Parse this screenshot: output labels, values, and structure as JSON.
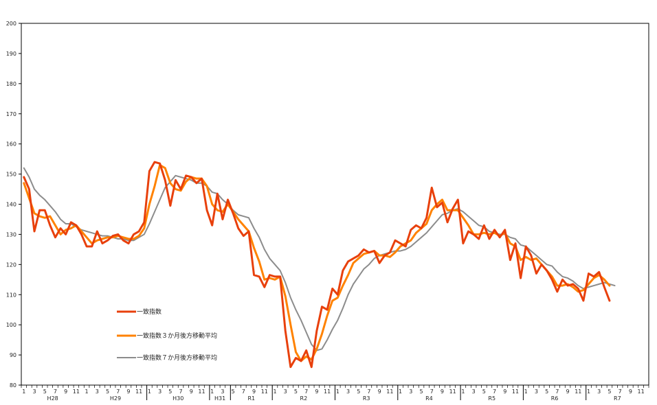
{
  "chart_data": {
    "type": "line",
    "ylim": [
      80,
      200
    ],
    "yticks": [
      80,
      90,
      100,
      110,
      120,
      130,
      140,
      150,
      160,
      170,
      180,
      190,
      200
    ],
    "x_months_total": 120,
    "era_labels": [
      {
        "label": "H28",
        "start": 0,
        "span": 12
      },
      {
        "label": "H29",
        "start": 12,
        "span": 12
      },
      {
        "label": "H30",
        "start": 24,
        "span": 12
      },
      {
        "label": "H31",
        "start": 36,
        "span": 4
      },
      {
        "label": "R1",
        "start": 40,
        "span": 8
      },
      {
        "label": "R2",
        "start": 48,
        "span": 12
      },
      {
        "label": "R3",
        "start": 60,
        "span": 12
      },
      {
        "label": "R4",
        "start": 72,
        "span": 12
      },
      {
        "label": "R5",
        "start": 84,
        "span": 12
      },
      {
        "label": "R6",
        "start": 96,
        "span": 12
      },
      {
        "label": "R7",
        "start": 108,
        "span": 12
      }
    ],
    "era_dividers": [
      24,
      36,
      40,
      48,
      60,
      72,
      84,
      96,
      108
    ],
    "month_labels": [
      "1",
      "3",
      "5",
      "7",
      "9",
      "11"
    ],
    "series": [
      {
        "name": "一致指数",
        "color": "#e8400c",
        "width": 3,
        "values": [
          149,
          145,
          131,
          138,
          138,
          133,
          129,
          132,
          130,
          134,
          133,
          130,
          126,
          126,
          131,
          127,
          128,
          129.5,
          130,
          128,
          127,
          130,
          131,
          134,
          151,
          154,
          153.5,
          148,
          139.5,
          148,
          145,
          149.5,
          149,
          147,
          148.5,
          138,
          133,
          143.5,
          135,
          141.5,
          137,
          132,
          129.5,
          131,
          116.5,
          116,
          112.5,
          116.5,
          116,
          116,
          98,
          86,
          89,
          88,
          91.5,
          86,
          98,
          106,
          105,
          112,
          110,
          118,
          121,
          122,
          123,
          125,
          124,
          124.5,
          120.5,
          123,
          124,
          128,
          127,
          126,
          131.5,
          133,
          132,
          135.5,
          145.5,
          139,
          140.5,
          134,
          138.5,
          141.5,
          127,
          131,
          130,
          128.5,
          133,
          128.5,
          131.5,
          129,
          131.5,
          121.5,
          127,
          115.5,
          126,
          123,
          117,
          120,
          118,
          115,
          111,
          115,
          113,
          113.5,
          112,
          108,
          117,
          116,
          117.5,
          112.5,
          108
        ]
      },
      {
        "name": "一致指数３か月後方移動平均",
        "color": "#ff8200",
        "width": 3,
        "values": [
          147,
          142,
          137,
          136,
          135.5,
          136,
          133,
          130,
          131.5,
          132,
          133,
          131,
          129,
          127,
          128,
          128.5,
          129,
          129,
          129.5,
          129,
          128.5,
          128.5,
          129.5,
          132,
          140,
          146,
          153,
          152,
          147,
          145,
          144.5,
          147.5,
          149,
          148.5,
          148.5,
          146,
          140,
          138,
          137.5,
          140,
          137.5,
          135,
          133,
          131,
          125.5,
          121,
          115,
          115.5,
          115,
          116,
          109.5,
          100,
          91,
          88,
          89.5,
          88.5,
          92,
          97,
          103,
          108,
          109,
          113,
          116.5,
          120.5,
          122,
          123.5,
          124,
          124.5,
          123,
          123,
          122.5,
          124,
          126,
          127,
          128,
          130.5,
          132,
          133.5,
          138,
          140,
          141.5,
          138,
          138,
          138,
          135.5,
          133,
          130,
          130,
          130.5,
          130,
          130.5,
          129.5,
          130.5,
          127,
          126,
          121.5,
          122.5,
          121.5,
          122,
          120,
          118,
          116,
          113,
          113,
          113.5,
          112.5,
          111,
          111.5,
          113.5,
          115.5,
          116.5,
          115,
          113
        ]
      },
      {
        "name": "一致指数７か月後方移動平均",
        "color": "#8c8c8c",
        "width": 2,
        "values": [
          152,
          149,
          145,
          143,
          141.5,
          139.5,
          137.5,
          135,
          133.5,
          133.5,
          132.5,
          131.5,
          131,
          130.5,
          130,
          129.5,
          129.5,
          129,
          128.5,
          128.5,
          128,
          128,
          129,
          130,
          133.5,
          137.5,
          141.5,
          145.5,
          147.5,
          149.5,
          149,
          148.5,
          148,
          147,
          147,
          146,
          144,
          143.5,
          141.5,
          140,
          138,
          136.5,
          136,
          135.5,
          132,
          129,
          125,
          122,
          120,
          118,
          114,
          109,
          105,
          101.5,
          97.5,
          93.5,
          91.5,
          92,
          95,
          98.5,
          101.5,
          105.5,
          110,
          113.5,
          116,
          118.5,
          120,
          122,
          123,
          123.5,
          124,
          124.5,
          124.5,
          125,
          126,
          127.5,
          129,
          130.5,
          132.5,
          134.5,
          136.5,
          137,
          138,
          138.5,
          137.5,
          136,
          134.5,
          133,
          132.5,
          131,
          130.5,
          130,
          130,
          129,
          128.5,
          126.5,
          126,
          124.5,
          123,
          121.5,
          120,
          119.5,
          117.5,
          116,
          115.5,
          114.5,
          113,
          112,
          112.5,
          113,
          113.5,
          114,
          113.5,
          113
        ]
      }
    ]
  }
}
